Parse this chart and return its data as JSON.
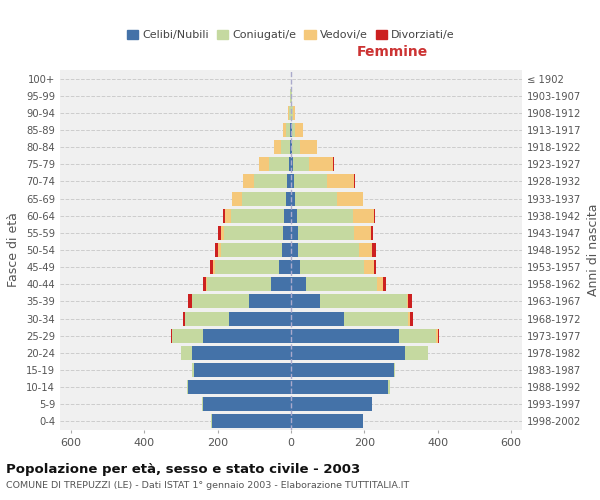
{
  "age_groups": [
    "0-4",
    "5-9",
    "10-14",
    "15-19",
    "20-24",
    "25-29",
    "30-34",
    "35-39",
    "40-44",
    "45-49",
    "50-54",
    "55-59",
    "60-64",
    "65-69",
    "70-74",
    "75-79",
    "80-84",
    "85-89",
    "90-94",
    "95-99",
    "100+"
  ],
  "birth_years": [
    "1998-2002",
    "1993-1997",
    "1988-1992",
    "1983-1987",
    "1978-1982",
    "1973-1977",
    "1968-1972",
    "1963-1967",
    "1958-1962",
    "1953-1957",
    "1948-1952",
    "1943-1947",
    "1938-1942",
    "1933-1937",
    "1928-1932",
    "1923-1927",
    "1918-1922",
    "1913-1917",
    "1908-1912",
    "1903-1907",
    "≤ 1902"
  ],
  "males": {
    "celibe": [
      215,
      240,
      280,
      265,
      270,
      240,
      170,
      115,
      55,
      32,
      25,
      22,
      20,
      15,
      10,
      5,
      3,
      2,
      0,
      0,
      0
    ],
    "coniugato": [
      2,
      2,
      5,
      5,
      30,
      85,
      120,
      155,
      175,
      175,
      165,
      160,
      145,
      120,
      90,
      55,
      25,
      12,
      5,
      2,
      0
    ],
    "vedovo": [
      0,
      0,
      0,
      0,
      0,
      0,
      0,
      0,
      3,
      5,
      8,
      10,
      15,
      25,
      30,
      28,
      18,
      8,
      3,
      0,
      0
    ],
    "divorziato": [
      0,
      0,
      0,
      0,
      0,
      2,
      5,
      10,
      8,
      8,
      10,
      8,
      5,
      2,
      0,
      0,
      0,
      0,
      0,
      0,
      0
    ]
  },
  "females": {
    "nubile": [
      195,
      220,
      265,
      280,
      310,
      295,
      145,
      80,
      40,
      25,
      20,
      18,
      15,
      10,
      8,
      5,
      3,
      2,
      0,
      0,
      0
    ],
    "coniugata": [
      2,
      2,
      5,
      5,
      65,
      100,
      175,
      235,
      195,
      175,
      165,
      155,
      155,
      115,
      90,
      45,
      22,
      10,
      5,
      2,
      0
    ],
    "vedova": [
      0,
      0,
      0,
      0,
      0,
      5,
      5,
      5,
      15,
      25,
      35,
      45,
      55,
      70,
      75,
      65,
      45,
      20,
      5,
      2,
      0
    ],
    "divorziata": [
      0,
      0,
      0,
      0,
      0,
      3,
      8,
      10,
      8,
      8,
      12,
      5,
      5,
      2,
      2,
      2,
      0,
      0,
      0,
      0,
      0
    ]
  },
  "color_celibe": "#4472a8",
  "color_coniugato": "#c5d9a0",
  "color_vedovo": "#f5c87a",
  "color_divorziato": "#cc2020",
  "title": "Popolazione per età, sesso e stato civile - 2003",
  "subtitle": "COMUNE DI TREPUZZI (LE) - Dati ISTAT 1° gennaio 2003 - Elaborazione TUTTITALIA.IT",
  "ylabel": "Fasce di età",
  "ylabel_right": "Anni di nascita",
  "xlabel_femmine": "Femmine",
  "xlim": 630,
  "legend_labels": [
    "Celibi/Nubili",
    "Coniugati/e",
    "Vedovi/e",
    "Divorziati/e"
  ]
}
